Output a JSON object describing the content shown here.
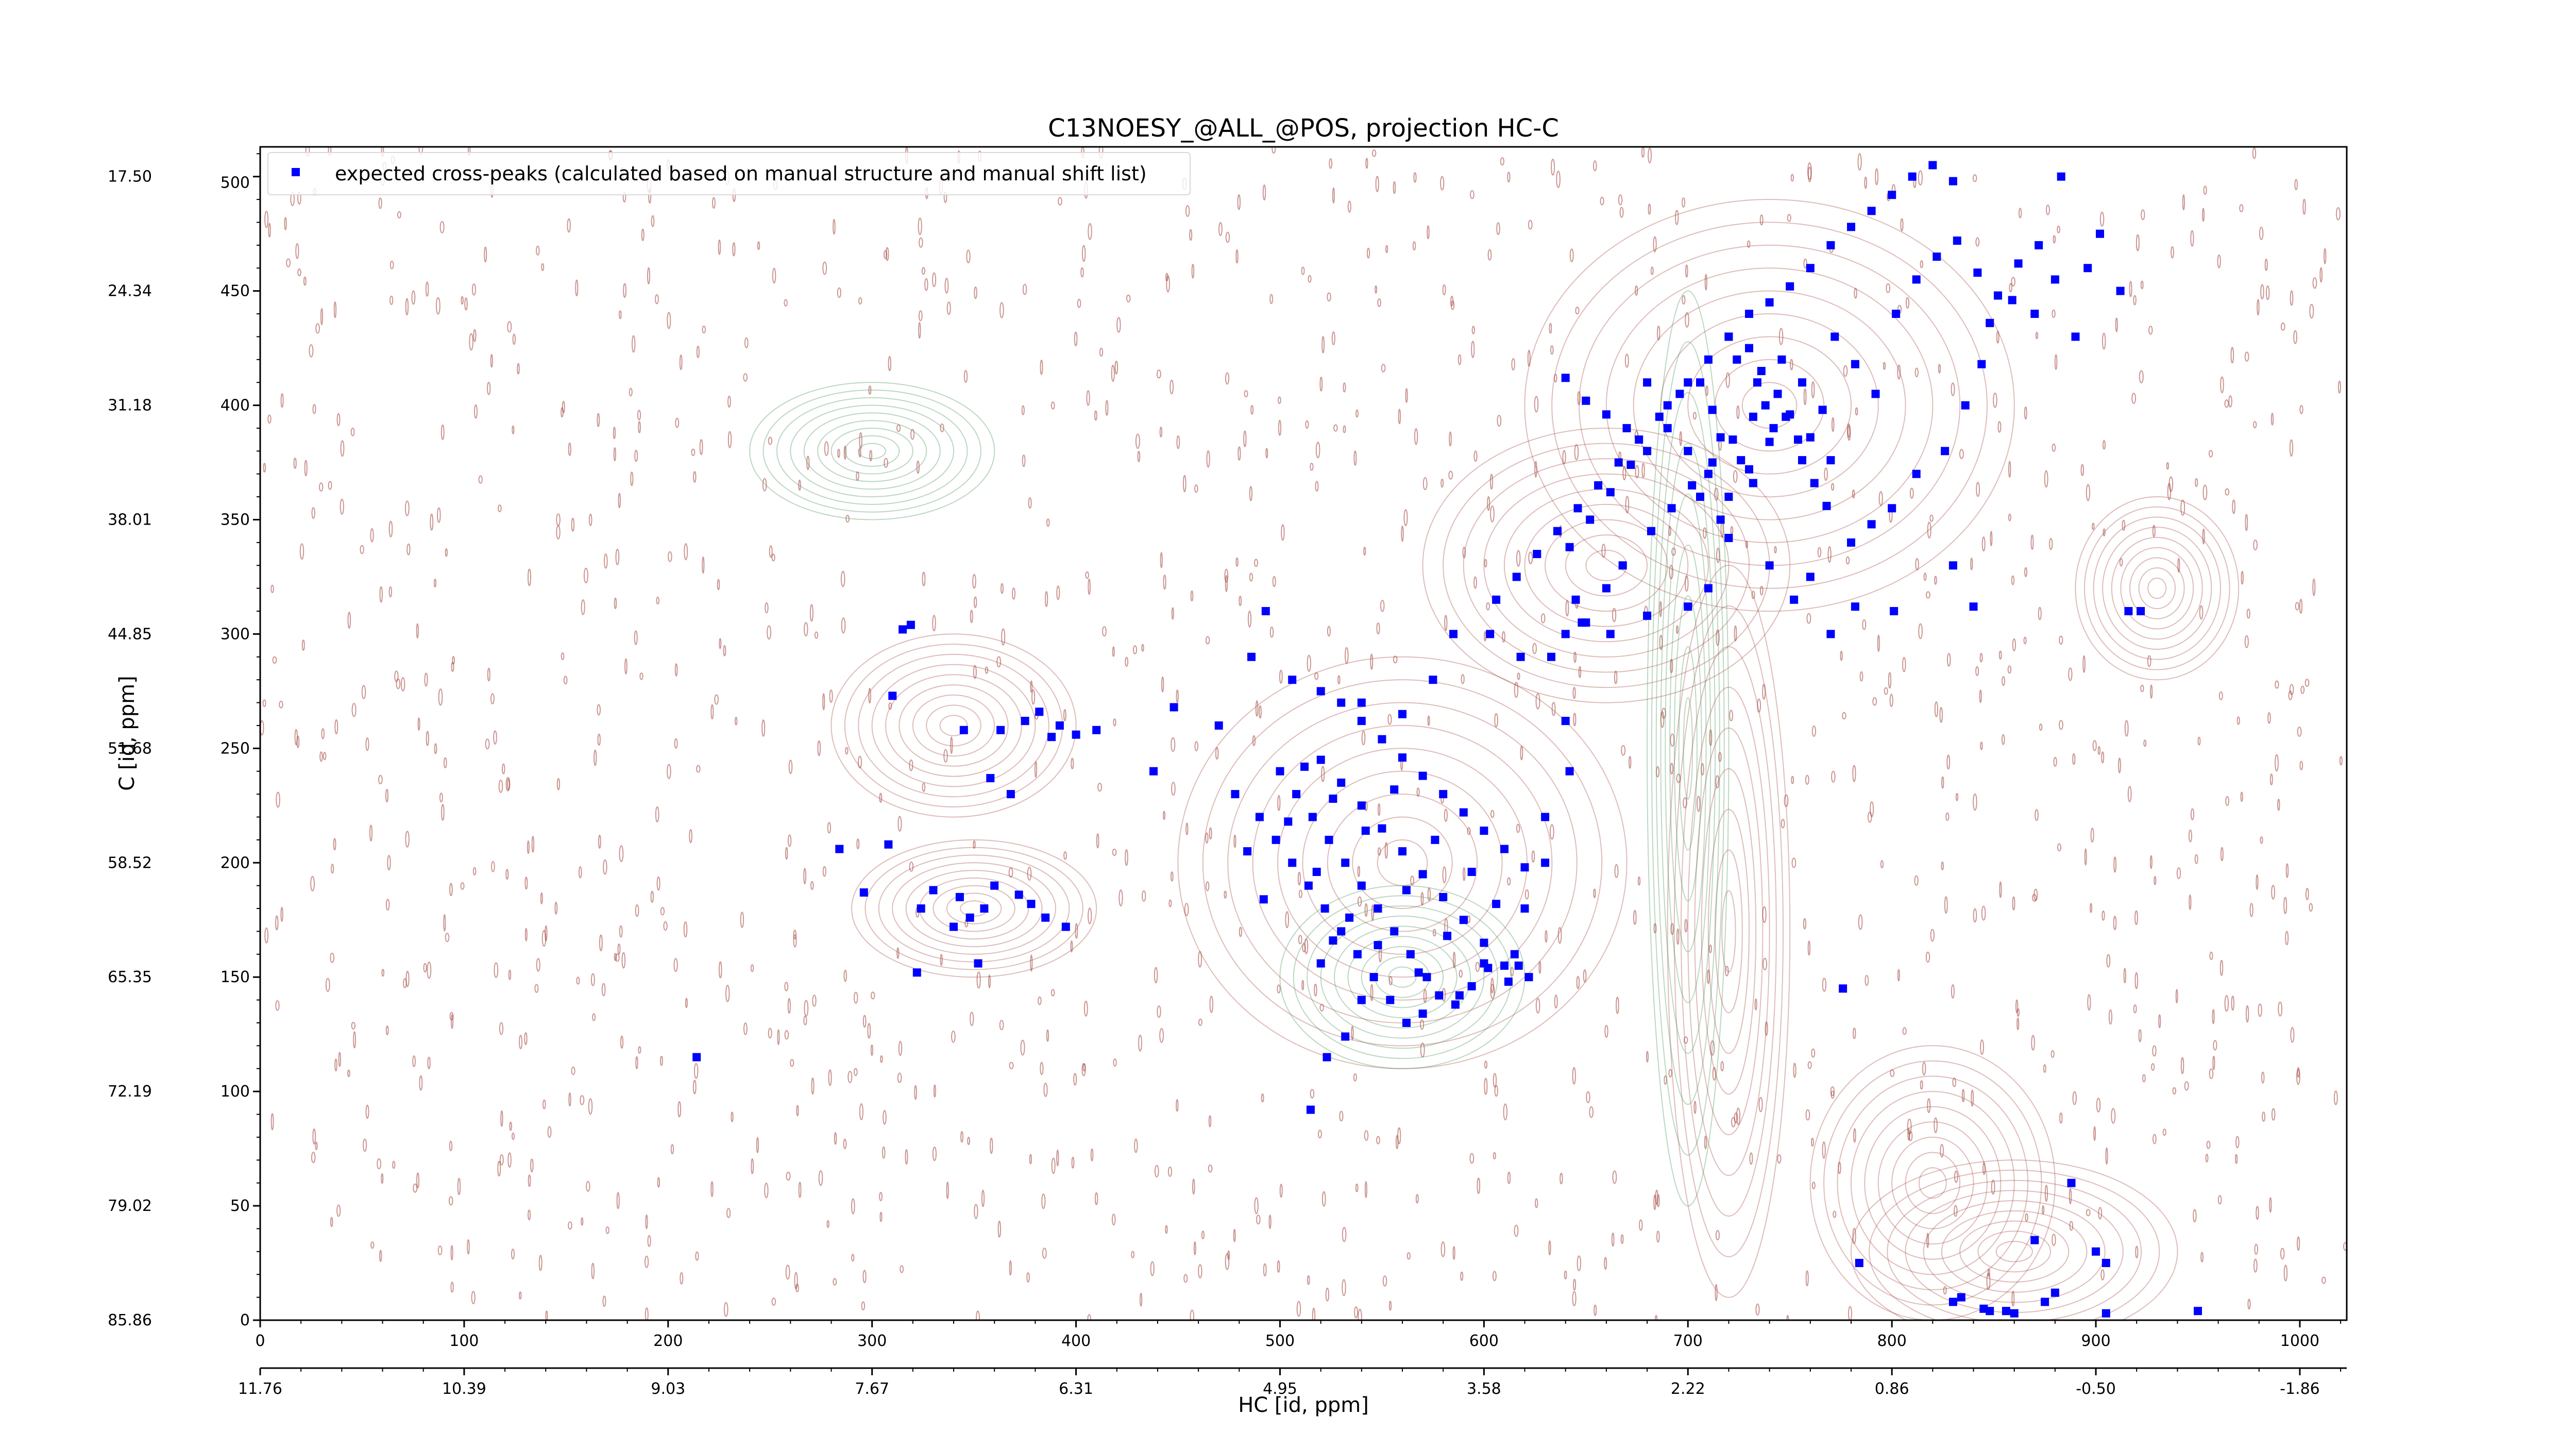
{
  "chart_data": {
    "type": "scatter",
    "title": "C13NOESY_@ALL_@POS, projection HC-C",
    "xlabel": "HC [id, ppm]",
    "ylabel": "C [id, ppm]",
    "xlim": [
      0,
      1023
    ],
    "ylim": [
      0,
      513
    ],
    "x_ticks_index": [
      "0",
      "100",
      "200",
      "300",
      "400",
      "500",
      "600",
      "700",
      "800",
      "900",
      "1000"
    ],
    "x_ticks_ppm": [
      "11.76",
      "10.39",
      "9.03",
      "7.67",
      "6.31",
      "4.95",
      "3.58",
      "2.22",
      "0.86",
      "-0.50",
      "-1.86"
    ],
    "y_ticks_index": [
      "0",
      "50",
      "100",
      "150",
      "200",
      "250",
      "300",
      "350",
      "400",
      "450",
      "500"
    ],
    "y_ticks_ppm": [
      "85.86",
      "79.02",
      "72.19",
      "65.35",
      "58.52",
      "51.68",
      "44.85",
      "38.01",
      "31.18",
      "24.34",
      "17.50"
    ],
    "legend": {
      "placement": "top-left",
      "label": "expected cross-peaks (calculated based on manual structure and manual shift list)"
    },
    "grid": false,
    "colors": {
      "peak_marker": "#0000ff",
      "positive_contour": "#a0413a",
      "negative_contour": "#3f8f4f"
    },
    "series": [
      {
        "name": "expected cross-peaks (calculated based on manual structure and manual shift list)",
        "points": [
          [
            214,
            115
          ],
          [
            284,
            206
          ],
          [
            296,
            187
          ],
          [
            308,
            208
          ],
          [
            310,
            273
          ],
          [
            315,
            302
          ],
          [
            319,
            304
          ],
          [
            322,
            152
          ],
          [
            324,
            180
          ],
          [
            330,
            188
          ],
          [
            340,
            172
          ],
          [
            343,
            185
          ],
          [
            345,
            258
          ],
          [
            348,
            176
          ],
          [
            352,
            156
          ],
          [
            355,
            180
          ],
          [
            358,
            237
          ],
          [
            360,
            190
          ],
          [
            363,
            258
          ],
          [
            368,
            230
          ],
          [
            372,
            186
          ],
          [
            375,
            262
          ],
          [
            378,
            182
          ],
          [
            382,
            266
          ],
          [
            385,
            176
          ],
          [
            388,
            255
          ],
          [
            392,
            260
          ],
          [
            395,
            172
          ],
          [
            400,
            256
          ],
          [
            410,
            258
          ],
          [
            438,
            240
          ],
          [
            448,
            268
          ],
          [
            470,
            260
          ],
          [
            486,
            290
          ],
          [
            493,
            310
          ],
          [
            506,
            280
          ],
          [
            520,
            275
          ],
          [
            540,
            270
          ],
          [
            560,
            265
          ],
          [
            575,
            280
          ],
          [
            585,
            300
          ],
          [
            603,
            300
          ],
          [
            618,
            290
          ],
          [
            640,
            300
          ],
          [
            645,
            315
          ],
          [
            648,
            305
          ],
          [
            660,
            320
          ],
          [
            668,
            330
          ],
          [
            680,
            308
          ],
          [
            700,
            312
          ],
          [
            710,
            320
          ],
          [
            720,
            342
          ],
          [
            740,
            330
          ],
          [
            752,
            315
          ],
          [
            760,
            325
          ],
          [
            770,
            300
          ],
          [
            782,
            312
          ],
          [
            801,
            310
          ],
          [
            830,
            330
          ],
          [
            840,
            312
          ],
          [
            780,
            340
          ],
          [
            790,
            348
          ],
          [
            800,
            355
          ],
          [
            812,
            370
          ],
          [
            826,
            380
          ],
          [
            836,
            400
          ],
          [
            844,
            418
          ],
          [
            848,
            436
          ],
          [
            859,
            446
          ],
          [
            870,
            440
          ],
          [
            640,
            412
          ],
          [
            650,
            402
          ],
          [
            660,
            396
          ],
          [
            670,
            390
          ],
          [
            680,
            380
          ],
          [
            690,
            400
          ],
          [
            700,
            410
          ],
          [
            710,
            420
          ],
          [
            720,
            430
          ],
          [
            730,
            440
          ],
          [
            740,
            445
          ],
          [
            750,
            452
          ],
          [
            760,
            460
          ],
          [
            770,
            470
          ],
          [
            780,
            478
          ],
          [
            790,
            485
          ],
          [
            800,
            492
          ],
          [
            810,
            500
          ],
          [
            820,
            505
          ],
          [
            830,
            498
          ],
          [
            746,
            420
          ],
          [
            756,
            410
          ],
          [
            766,
            398
          ],
          [
            772,
            430
          ],
          [
            782,
            418
          ],
          [
            792,
            405
          ],
          [
            802,
            440
          ],
          [
            812,
            455
          ],
          [
            822,
            465
          ],
          [
            832,
            472
          ],
          [
            842,
            458
          ],
          [
            852,
            448
          ],
          [
            862,
            462
          ],
          [
            872,
            470
          ],
          [
            880,
            455
          ],
          [
            883,
            500
          ],
          [
            890,
            430
          ],
          [
            896,
            460
          ],
          [
            902,
            475
          ],
          [
            912,
            450
          ],
          [
            680,
            410
          ],
          [
            690,
            390
          ],
          [
            700,
            380
          ],
          [
            710,
            370
          ],
          [
            720,
            360
          ],
          [
            730,
            372
          ],
          [
            740,
            384
          ],
          [
            750,
            396
          ],
          [
            760,
            386
          ],
          [
            770,
            376
          ],
          [
            642,
            338
          ],
          [
            652,
            350
          ],
          [
            662,
            362
          ],
          [
            672,
            374
          ],
          [
            682,
            345
          ],
          [
            692,
            355
          ],
          [
            702,
            365
          ],
          [
            712,
            375
          ],
          [
            722,
            385
          ],
          [
            732,
            395
          ],
          [
            606,
            315
          ],
          [
            616,
            325
          ],
          [
            626,
            335
          ],
          [
            636,
            345
          ],
          [
            646,
            355
          ],
          [
            656,
            365
          ],
          [
            666,
            375
          ],
          [
            676,
            385
          ],
          [
            686,
            395
          ],
          [
            696,
            405
          ],
          [
            500,
            240
          ],
          [
            508,
            230
          ],
          [
            516,
            220
          ],
          [
            524,
            210
          ],
          [
            532,
            200
          ],
          [
            540,
            190
          ],
          [
            548,
            180
          ],
          [
            556,
            170
          ],
          [
            564,
            160
          ],
          [
            572,
            150
          ],
          [
            520,
            245
          ],
          [
            530,
            235
          ],
          [
            540,
            225
          ],
          [
            550,
            215
          ],
          [
            560,
            205
          ],
          [
            570,
            195
          ],
          [
            580,
            185
          ],
          [
            590,
            175
          ],
          [
            600,
            165
          ],
          [
            610,
            155
          ],
          [
            490,
            220
          ],
          [
            498,
            210
          ],
          [
            506,
            200
          ],
          [
            514,
            190
          ],
          [
            522,
            180
          ],
          [
            530,
            170
          ],
          [
            538,
            160
          ],
          [
            546,
            150
          ],
          [
            554,
            140
          ],
          [
            562,
            130
          ],
          [
            530,
            270
          ],
          [
            540,
            262
          ],
          [
            550,
            254
          ],
          [
            560,
            246
          ],
          [
            570,
            238
          ],
          [
            580,
            230
          ],
          [
            590,
            222
          ],
          [
            600,
            214
          ],
          [
            610,
            206
          ],
          [
            620,
            198
          ],
          [
            478,
            230
          ],
          [
            484,
            205
          ],
          [
            492,
            184
          ],
          [
            504,
            218
          ],
          [
            512,
            242
          ],
          [
            518,
            196
          ],
          [
            526,
            228
          ],
          [
            534,
            176
          ],
          [
            542,
            214
          ],
          [
            548,
            164
          ],
          [
            556,
            232
          ],
          [
            562,
            188
          ],
          [
            568,
            152
          ],
          [
            576,
            210
          ],
          [
            582,
            168
          ],
          [
            588,
            142
          ],
          [
            594,
            196
          ],
          [
            600,
            156
          ],
          [
            606,
            182
          ],
          [
            612,
            148
          ],
          [
            520,
            156
          ],
          [
            526,
            166
          ],
          [
            532,
            124
          ],
          [
            540,
            140
          ],
          [
            570,
            134
          ],
          [
            578,
            142
          ],
          [
            586,
            138
          ],
          [
            594,
            146
          ],
          [
            602,
            154
          ],
          [
            620,
            180
          ],
          [
            515,
            92
          ],
          [
            523,
            115
          ],
          [
            640,
            262
          ],
          [
            633,
            290
          ],
          [
            650,
            305
          ],
          [
            662,
            300
          ],
          [
            615,
            160
          ],
          [
            617,
            155
          ],
          [
            622,
            150
          ],
          [
            630,
            200
          ],
          [
            720,
            430
          ],
          [
            730,
            425
          ],
          [
            736,
            415
          ],
          [
            744,
            405
          ],
          [
            748,
            395
          ],
          [
            754,
            385
          ],
          [
            724,
            420
          ],
          [
            734,
            410
          ],
          [
            738,
            400
          ],
          [
            742,
            390
          ],
          [
            706,
            410
          ],
          [
            712,
            398
          ],
          [
            716,
            386
          ],
          [
            726,
            376
          ],
          [
            732,
            366
          ],
          [
            756,
            376
          ],
          [
            762,
            366
          ],
          [
            768,
            356
          ],
          [
            706,
            360
          ],
          [
            716,
            350
          ],
          [
            888,
            60
          ],
          [
            900,
            30
          ],
          [
            905,
            25
          ],
          [
            905,
            3
          ],
          [
            950,
            4
          ],
          [
            922,
            310
          ],
          [
            916,
            310
          ],
          [
            848,
            4
          ],
          [
            856,
            4
          ],
          [
            870,
            35
          ],
          [
            830,
            8
          ],
          [
            834,
            10
          ],
          [
            845,
            5
          ],
          [
            860,
            3
          ],
          [
            875,
            8
          ],
          [
            880,
            12
          ],
          [
            776,
            145
          ],
          [
            784,
            25
          ],
          [
            642,
            240
          ],
          [
            630,
            220
          ]
        ]
      }
    ]
  }
}
